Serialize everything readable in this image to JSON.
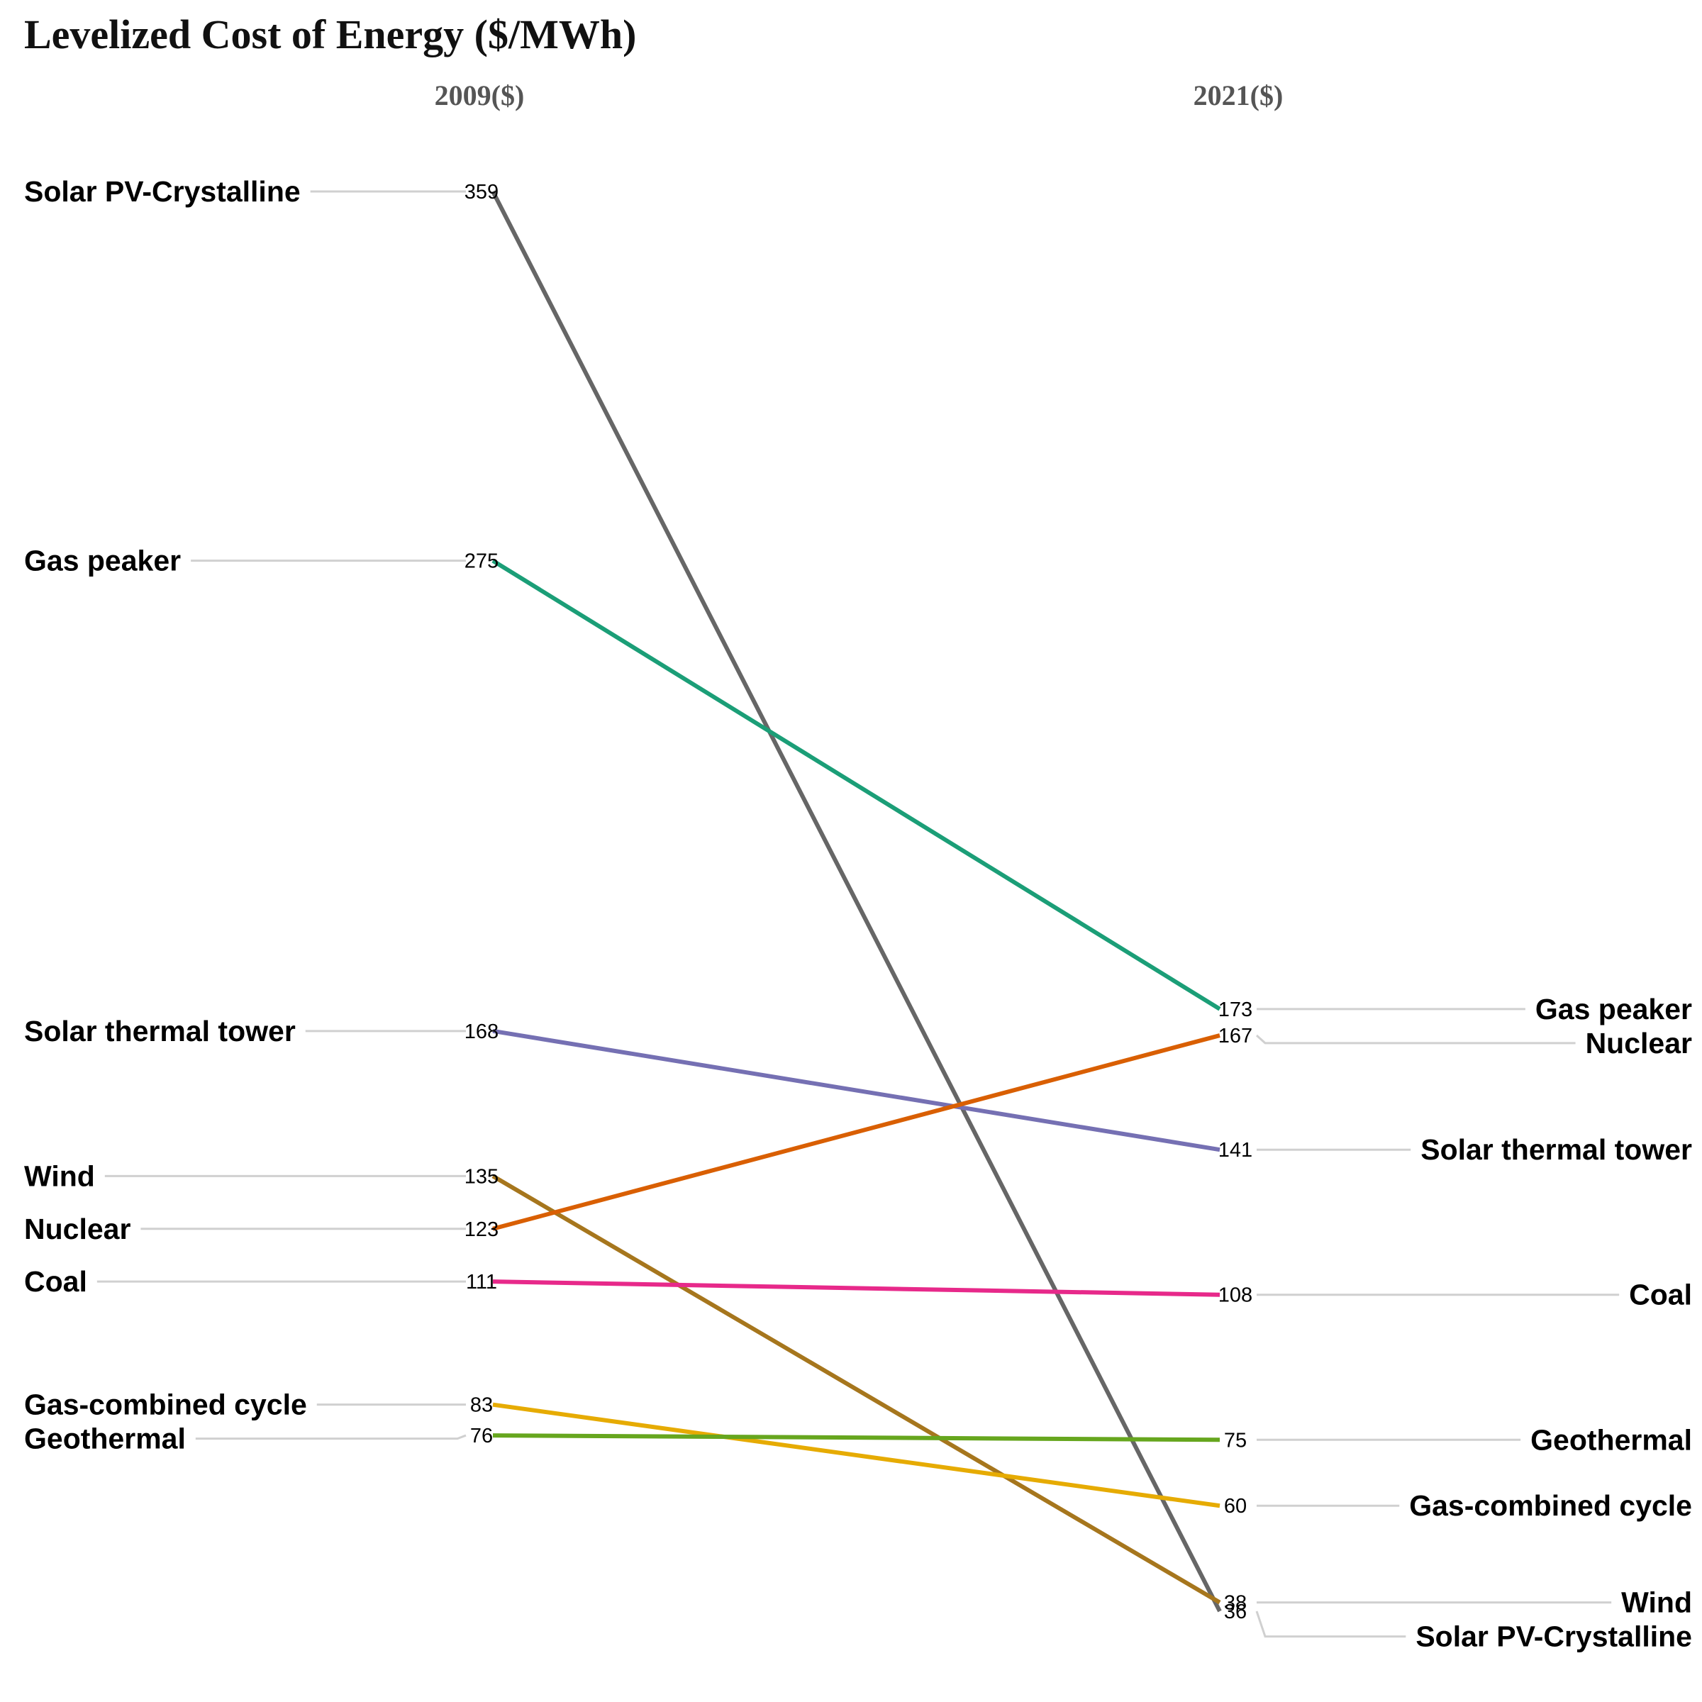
{
  "chart_data": {
    "type": "line",
    "subtype": "slopegraph",
    "title": "Levelized Cost of Energy ($/MWh)",
    "x": [
      "2009($)",
      "2021($)"
    ],
    "series": [
      {
        "name": "Solar PV-Crystalline",
        "values": [
          359,
          36
        ],
        "color": "#666666"
      },
      {
        "name": "Gas peaker",
        "values": [
          275,
          173
        ],
        "color": "#1b9e77"
      },
      {
        "name": "Solar thermal tower",
        "values": [
          168,
          141
        ],
        "color": "#7570b3"
      },
      {
        "name": "Wind",
        "values": [
          135,
          38
        ],
        "color": "#a6761d"
      },
      {
        "name": "Nuclear",
        "values": [
          123,
          167
        ],
        "color": "#d95f02"
      },
      {
        "name": "Coal",
        "values": [
          111,
          108
        ],
        "color": "#e7298a"
      },
      {
        "name": "Gas-combined cycle",
        "values": [
          83,
          60
        ],
        "color": "#e6ab02"
      },
      {
        "name": "Geothermal",
        "values": [
          76,
          75
        ],
        "color": "#66a61e"
      }
    ],
    "ylim": [
      36,
      359
    ],
    "grid": false,
    "legend": "none"
  }
}
